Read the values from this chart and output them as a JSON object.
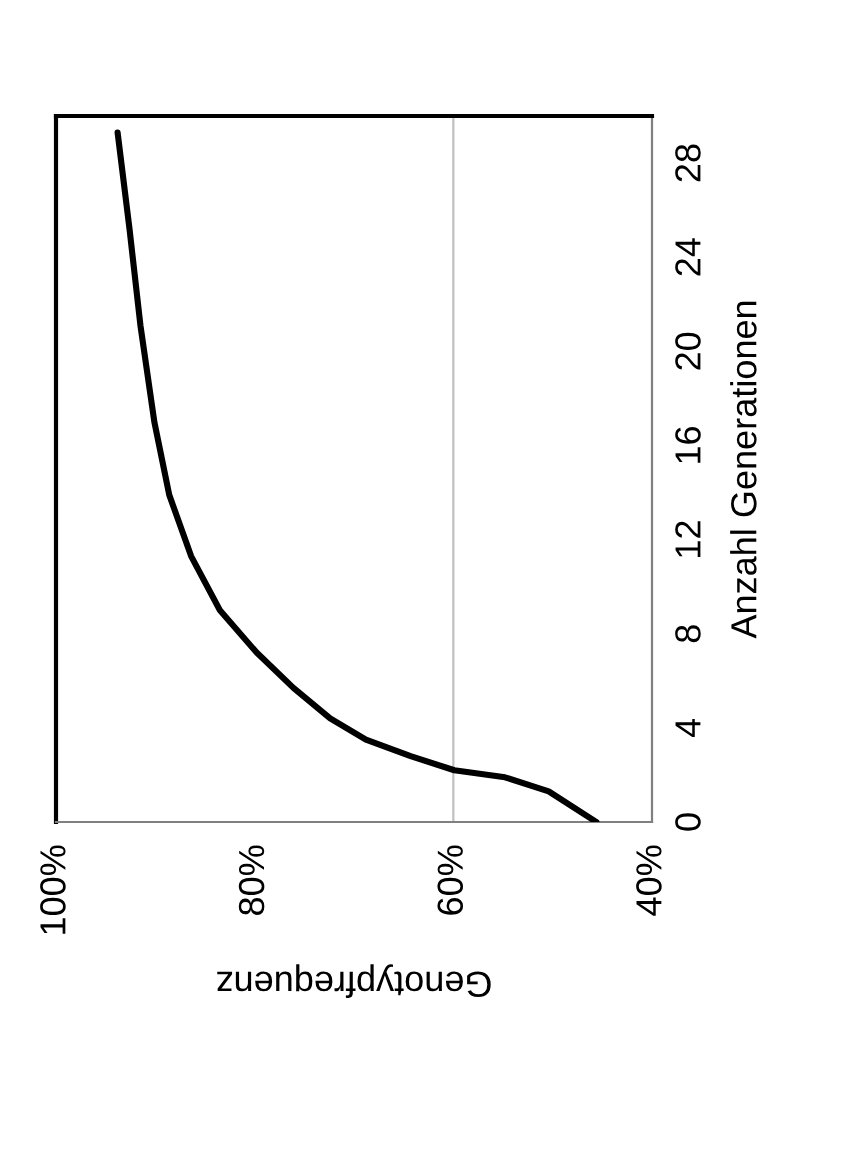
{
  "chart_data": {
    "type": "line",
    "xlabel": "Genotypfrequenz",
    "ylabel": "Anzahl Generationen",
    "xlim": [
      100,
      40
    ],
    "xticks": [
      {
        "value": 100,
        "label": "100%"
      },
      {
        "value": 80,
        "label": "80%"
      },
      {
        "value": 60,
        "label": "60%"
      },
      {
        "value": 40,
        "label": "40%"
      }
    ],
    "ylim": [
      0,
      30
    ],
    "yticks": [
      0,
      4,
      8,
      12,
      16,
      20,
      24,
      28
    ],
    "grid": false,
    "marker": "none",
    "line_style": "solid",
    "ref_lines": [
      {
        "axis": "x",
        "value": 60,
        "color": "#c0c0c0"
      }
    ],
    "series": [
      {
        "color": "#000000",
        "x": [
          45.6,
          50.4,
          54.8,
          59.9,
          64.3,
          68.8,
          72.4,
          76.1,
          79.8,
          83.5,
          86.4,
          88.6,
          90.1,
          91.5,
          92.6,
          93.8
        ],
        "values": [
          0,
          1.3,
          1.9,
          2.2,
          2.8,
          3.5,
          4.4,
          5.7,
          7.2,
          9.0,
          11.3,
          13.9,
          17.0,
          21.1,
          25.2,
          29.3
        ]
      }
    ]
  }
}
